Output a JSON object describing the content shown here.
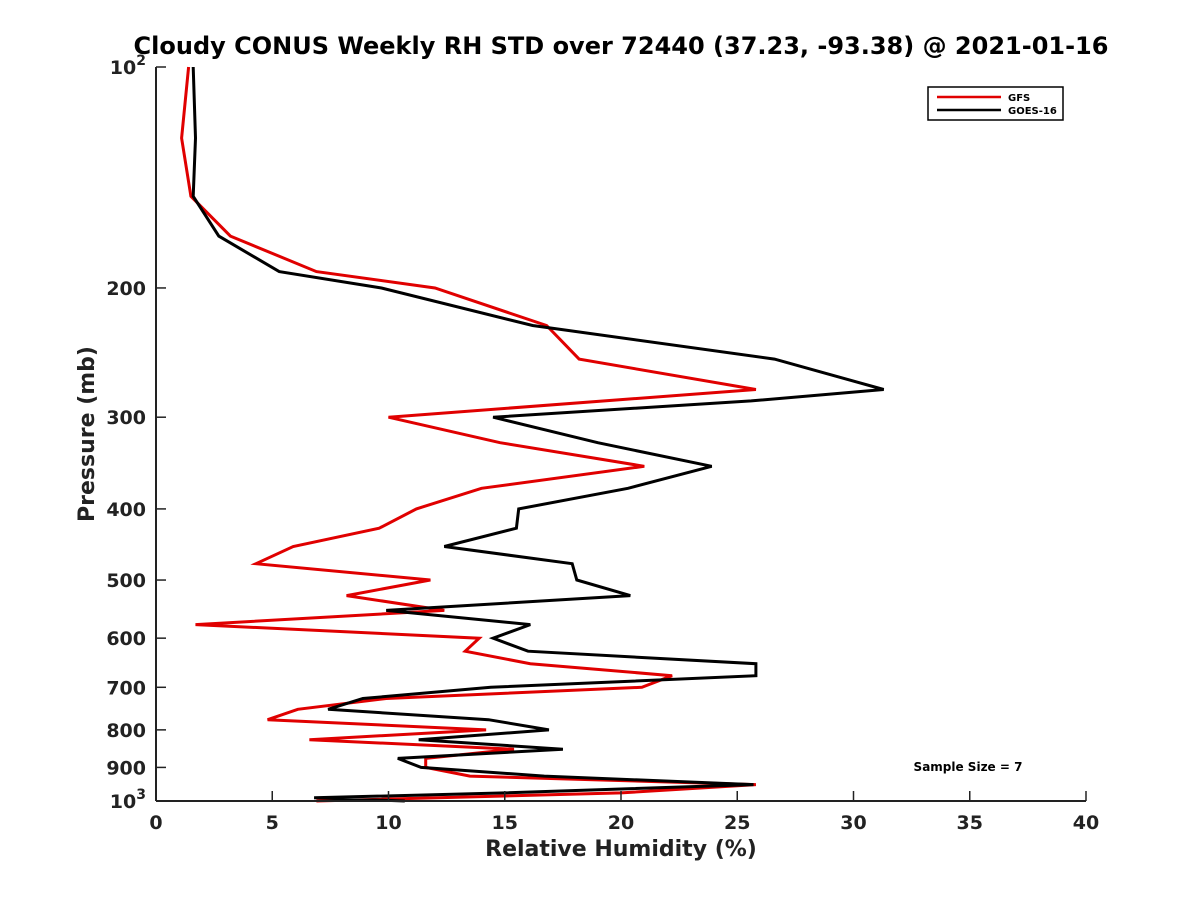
{
  "chart_data": {
    "type": "line",
    "title": "Cloudy CONUS Weekly RH STD over 72440 (37.23, -93.38) @ 2021-01-16",
    "xlabel": "Relative Humidity (%)",
    "ylabel": "Pressure (mb)",
    "xlim": [
      0,
      40
    ],
    "ylim": [
      100,
      1000
    ],
    "y_scale": "log",
    "y_reversed": true,
    "grid": false,
    "legend_position": "top-right",
    "x_ticks": [
      "0",
      "5",
      "10",
      "15",
      "20",
      "25",
      "30",
      "35",
      "40"
    ],
    "y_ticks": [
      {
        "value": 100,
        "base": "10",
        "exp": "2"
      },
      {
        "value": 200,
        "label": "200"
      },
      {
        "value": 300,
        "label": "300"
      },
      {
        "value": 400,
        "label": "400"
      },
      {
        "value": 500,
        "label": "500"
      },
      {
        "value": 600,
        "label": "600"
      },
      {
        "value": 700,
        "label": "700"
      },
      {
        "value": 800,
        "label": "800"
      },
      {
        "value": 900,
        "label": "900"
      },
      {
        "value": 1000,
        "base": "10",
        "exp": "3"
      }
    ],
    "annotation": "Sample Size = 7",
    "series": [
      {
        "name": "GFS",
        "color": "#e00000",
        "points": [
          [
            1.4,
            100
          ],
          [
            1.1,
            125
          ],
          [
            1.5,
            150
          ],
          [
            3.2,
            170
          ],
          [
            6.9,
            190
          ],
          [
            12.0,
            200
          ],
          [
            16.8,
            225
          ],
          [
            18.2,
            250
          ],
          [
            25.8,
            275
          ],
          [
            10.0,
            300
          ],
          [
            14.8,
            325
          ],
          [
            21.0,
            350
          ],
          [
            14.0,
            375
          ],
          [
            11.2,
            400
          ],
          [
            9.6,
            425
          ],
          [
            5.9,
            450
          ],
          [
            4.3,
            475
          ],
          [
            11.8,
            500
          ],
          [
            8.2,
            525
          ],
          [
            12.4,
            550
          ],
          [
            1.7,
            575
          ],
          [
            13.9,
            600
          ],
          [
            13.3,
            625
          ],
          [
            16.1,
            650
          ],
          [
            22.2,
            675
          ],
          [
            20.9,
            700
          ],
          [
            9.9,
            725
          ],
          [
            6.1,
            750
          ],
          [
            4.8,
            775
          ],
          [
            14.2,
            800
          ],
          [
            6.6,
            825
          ],
          [
            15.4,
            850
          ],
          [
            11.6,
            875
          ],
          [
            11.6,
            900
          ],
          [
            13.5,
            925
          ],
          [
            25.8,
            950
          ],
          [
            20.0,
            975
          ],
          [
            6.9,
            1000
          ]
        ]
      },
      {
        "name": "GOES-16",
        "color": "#000000",
        "points": [
          [
            1.6,
            100
          ],
          [
            1.7,
            125
          ],
          [
            1.6,
            150
          ],
          [
            2.7,
            170
          ],
          [
            5.3,
            190
          ],
          [
            9.7,
            200
          ],
          [
            16.2,
            225
          ],
          [
            26.6,
            250
          ],
          [
            31.3,
            275
          ],
          [
            25.6,
            285
          ],
          [
            14.5,
            300
          ],
          [
            19.0,
            325
          ],
          [
            23.9,
            350
          ],
          [
            20.3,
            375
          ],
          [
            15.6,
            400
          ],
          [
            15.5,
            425
          ],
          [
            12.4,
            450
          ],
          [
            17.9,
            475
          ],
          [
            18.1,
            500
          ],
          [
            20.4,
            525
          ],
          [
            9.9,
            550
          ],
          [
            16.1,
            575
          ],
          [
            14.5,
            600
          ],
          [
            16.0,
            625
          ],
          [
            25.8,
            650
          ],
          [
            25.8,
            675
          ],
          [
            14.4,
            700
          ],
          [
            8.9,
            725
          ],
          [
            7.4,
            750
          ],
          [
            14.3,
            775
          ],
          [
            16.9,
            800
          ],
          [
            11.3,
            825
          ],
          [
            17.5,
            850
          ],
          [
            10.4,
            875
          ],
          [
            11.4,
            900
          ],
          [
            16.7,
            925
          ],
          [
            25.7,
            950
          ],
          [
            15.0,
            975
          ],
          [
            6.8,
            990
          ],
          [
            10.7,
            1000
          ]
        ]
      }
    ]
  }
}
